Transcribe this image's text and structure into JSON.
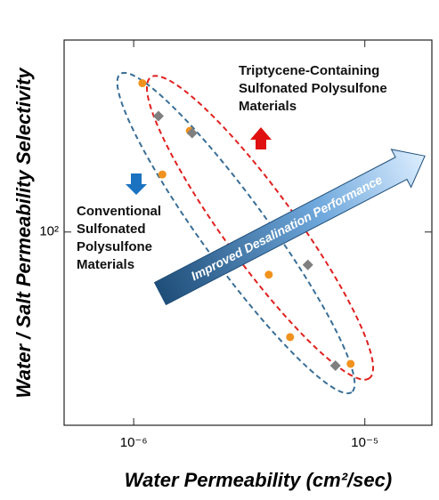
{
  "chart_data": {
    "type": "scatter",
    "xlabel": "Water Permeability (cm²/sec)",
    "ylabel": "Water / Salt Permeability Selectivity",
    "xscale": "log",
    "yscale": "log",
    "xlim": [
      5e-07,
      1.95e-05
    ],
    "ylim": [
      22,
      450
    ],
    "xticks": [
      {
        "value": 1e-06,
        "label": "10⁻⁶"
      },
      {
        "value": 1e-05,
        "label": "10⁻⁵"
      }
    ],
    "yticks": [
      {
        "value": 100,
        "label": "10²"
      }
    ],
    "series": [
      {
        "color": "#f0921e",
        "marker": "circle",
        "x": [
          1.09e-06,
          1.75e-06,
          1.33e-06,
          3.84e-06,
          4.75e-06,
          8.68e-06
        ],
        "values": [
          321,
          221,
          157,
          71.6,
          43.9,
          35.6
        ]
      },
      {
        "color": "#7f7f7f",
        "marker": "diamond",
        "x": [
          1.28e-06,
          1.79e-06,
          5.67e-06,
          7.46e-06
        ],
        "values": [
          248,
          217,
          77.3,
          35.1
        ]
      }
    ],
    "annotations": [
      [
        "Triptycene-Containing",
        "Sulfonated Polysulfone",
        "Materials"
      ],
      [
        "Conventional",
        "Sulfonated",
        "Polysulfone",
        "Materials"
      ],
      [
        "Improved Desalination Performance"
      ]
    ]
  }
}
